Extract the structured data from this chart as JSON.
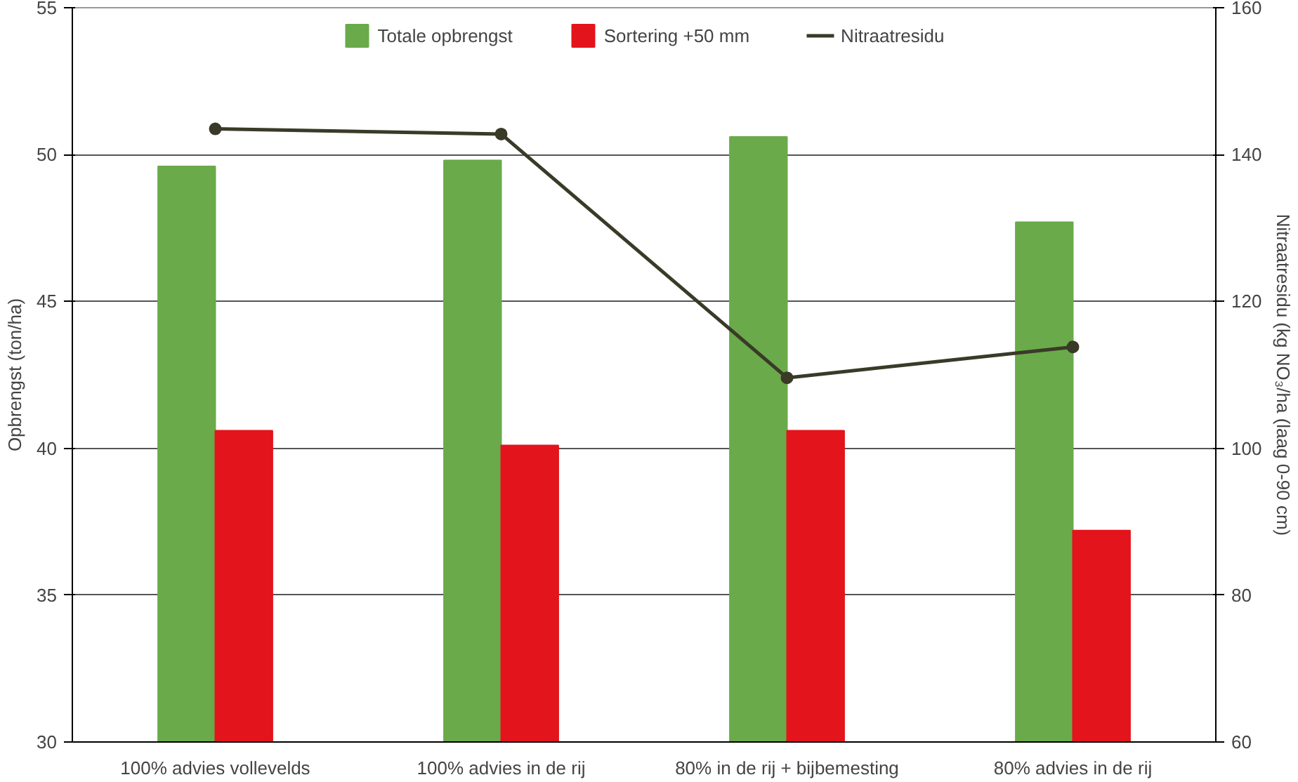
{
  "chart_data": {
    "type": "bar",
    "categories": [
      "100% advies vollevelds",
      "100% advies in de rij",
      "80% in de rij + bijbemesting",
      "80% advies in de rij"
    ],
    "ylabel": "Opbrengst (ton/ha)",
    "y2label": "Nitraatresidu (kg NO₃/ha (laag 0-90 cm)",
    "series": [
      {
        "name": "Totale opbrengst",
        "color": "#6aaa4a",
        "values": [
          49.6,
          49.8,
          50.6,
          47.7
        ]
      },
      {
        "name": "Sortering +50 mm",
        "color": "#e3141c",
        "values": [
          40.6,
          40.1,
          40.6,
          37.2
        ]
      },
      {
        "name": "Nitraatresidu",
        "type": "line",
        "axis": "y2",
        "color": "#3a3a28",
        "values": [
          143.5,
          142.8,
          109.6,
          113.8
        ]
      }
    ],
    "ylim": [
      30,
      55
    ],
    "yticks": [
      30,
      35,
      40,
      45,
      50,
      55
    ],
    "y2lim": [
      60,
      160
    ],
    "y2ticks": [
      60,
      80,
      100,
      120,
      140,
      160
    ],
    "grid": "y",
    "legend": "top",
    "marker": "circle"
  }
}
